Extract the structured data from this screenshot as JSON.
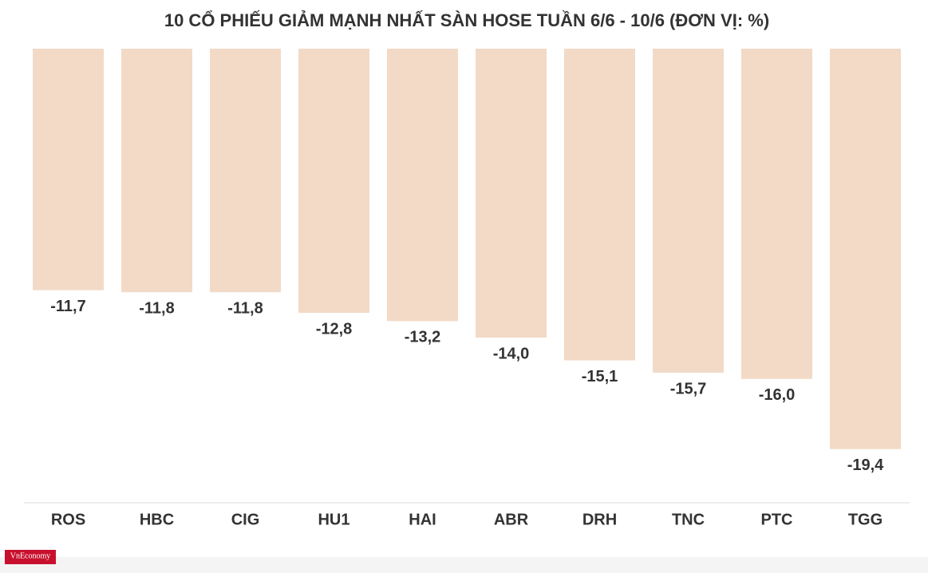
{
  "chart_data": {
    "type": "bar",
    "title": "10 CỔ PHIẾU GIẢM MẠNH NHẤT SÀN HOSE TUẦN 6/6 - 10/6 (ĐƠN VỊ: %)",
    "categories": [
      "ROS",
      "HBC",
      "CIG",
      "HU1",
      "HAI",
      "ABR",
      "DRH",
      "TNC",
      "PTC",
      "TGG"
    ],
    "values": [
      -11.7,
      -11.8,
      -11.8,
      -12.8,
      -13.2,
      -14.0,
      -15.1,
      -15.7,
      -16.0,
      -19.4
    ],
    "value_labels": [
      "-11,7",
      "-11,8",
      "-11,8",
      "-12,8",
      "-13,2",
      "-14,0",
      "-15,1",
      "-15,7",
      "-16,0",
      "-19,4"
    ],
    "color": "#f2dac7",
    "ylim": [
      -22,
      0
    ]
  },
  "brand": "VnEconomy"
}
